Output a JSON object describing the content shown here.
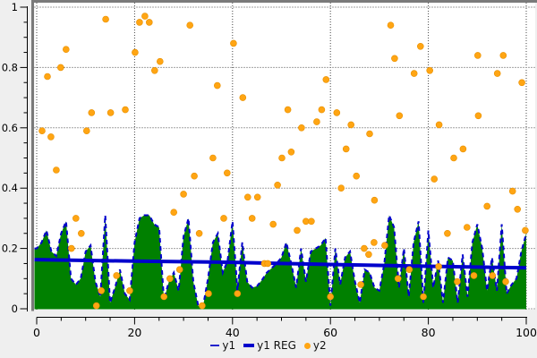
{
  "chart_data": {
    "type": "combo",
    "title": "",
    "grid": true,
    "legend_position": "bottom",
    "x_axis": {
      "min": 0,
      "max": 100,
      "major_tick_values": [
        0,
        20,
        40,
        60,
        80,
        100
      ],
      "tick_labels": [
        "0",
        "20",
        "40",
        "60",
        "80",
        "100"
      ],
      "minor_tick_step": 5
    },
    "y_axis": {
      "min": 0,
      "max": 1,
      "major_tick_values": [
        0,
        0.2,
        0.4,
        0.6,
        0.8,
        1
      ],
      "tick_labels": [
        "0",
        "0.2",
        "0.4",
        "0.6",
        "0.8",
        "1"
      ],
      "minor_tick_step": 0.05
    },
    "series": [
      {
        "name": "y1",
        "type": "area",
        "fill_color": "#008000",
        "line_color": "#0000cc",
        "line_style": "dashed",
        "x_start": 0,
        "x_step": 1,
        "values": [
          0.2,
          0.22,
          0.26,
          0.19,
          0.175,
          0.25,
          0.29,
          0.1,
          0.08,
          0.1,
          0.19,
          0.21,
          0.09,
          0.04,
          0.31,
          0.02,
          0.07,
          0.13,
          0.05,
          0.03,
          0.22,
          0.3,
          0.31,
          0.31,
          0.28,
          0.27,
          0.03,
          0.09,
          0.12,
          0.06,
          0.24,
          0.3,
          0.09,
          0.01,
          0.01,
          0.1,
          0.22,
          0.25,
          0.12,
          0.16,
          0.29,
          0.06,
          0.22,
          0.09,
          0.07,
          0.075,
          0.095,
          0.12,
          0.135,
          0.15,
          0.17,
          0.22,
          0.15,
          0.07,
          0.2,
          0.09,
          0.19,
          0.2,
          0.21,
          0.235,
          0.01,
          0.2,
          0.08,
          0.17,
          0.19,
          0.09,
          0.02,
          0.13,
          0.12,
          0.07,
          0.06,
          0.15,
          0.31,
          0.27,
          0.07,
          0.2,
          0.04,
          0.22,
          0.29,
          0.02,
          0.26,
          0.07,
          0.16,
          0.02,
          0.17,
          0.16,
          0.02,
          0.18,
          0.04,
          0.22,
          0.28,
          0.2,
          0.06,
          0.17,
          0.06,
          0.28,
          0.05,
          0.08,
          0.1,
          0.19,
          0.25
        ]
      },
      {
        "name": "y1 REG",
        "type": "line",
        "line_color": "#0000cc",
        "line_width": 4,
        "points": [
          [
            0,
            0.163
          ],
          [
            20,
            0.158
          ],
          [
            40,
            0.154
          ],
          [
            50,
            0.15
          ],
          [
            60,
            0.147
          ],
          [
            80,
            0.141
          ],
          [
            100,
            0.136
          ]
        ]
      },
      {
        "name": "y2",
        "type": "scatter",
        "color": "#ffa513",
        "points": [
          [
            1.1,
            0.59
          ],
          [
            2.2,
            0.77
          ],
          [
            2.9,
            0.57
          ],
          [
            4.0,
            0.46
          ],
          [
            4.9,
            0.8
          ],
          [
            6.0,
            0.86
          ],
          [
            7.1,
            0.2
          ],
          [
            8.0,
            0.3
          ],
          [
            9.1,
            0.25
          ],
          [
            10.2,
            0.59
          ],
          [
            11.2,
            0.65
          ],
          [
            12.2,
            0.01
          ],
          [
            13.2,
            0.06
          ],
          [
            14.1,
            0.96
          ],
          [
            15.1,
            0.65
          ],
          [
            16.3,
            0.11
          ],
          [
            18.1,
            0.66
          ],
          [
            19.0,
            0.06
          ],
          [
            20.1,
            0.85
          ],
          [
            21.0,
            0.95
          ],
          [
            22.1,
            0.97
          ],
          [
            23.0,
            0.95
          ],
          [
            24.1,
            0.79
          ],
          [
            25.2,
            0.82
          ],
          [
            26.0,
            0.04
          ],
          [
            27.2,
            0.1
          ],
          [
            28.0,
            0.32
          ],
          [
            29.2,
            0.13
          ],
          [
            30.0,
            0.38
          ],
          [
            31.3,
            0.94
          ],
          [
            32.2,
            0.44
          ],
          [
            33.2,
            0.25
          ],
          [
            33.8,
            0.01
          ],
          [
            35.1,
            0.05
          ],
          [
            36.0,
            0.5
          ],
          [
            36.9,
            0.74
          ],
          [
            38.2,
            0.3
          ],
          [
            38.9,
            0.45
          ],
          [
            40.2,
            0.88
          ],
          [
            41.0,
            0.05
          ],
          [
            42.1,
            0.7
          ],
          [
            43.1,
            0.37
          ],
          [
            44.0,
            0.3
          ],
          [
            45.1,
            0.37
          ],
          [
            46.5,
            0.15
          ],
          [
            47.2,
            0.15
          ],
          [
            48.3,
            0.28
          ],
          [
            49.2,
            0.41
          ],
          [
            50.1,
            0.5
          ],
          [
            51.3,
            0.66
          ],
          [
            52.0,
            0.52
          ],
          [
            53.2,
            0.26
          ],
          [
            54.1,
            0.6
          ],
          [
            55.0,
            0.29
          ],
          [
            56.1,
            0.29
          ],
          [
            57.2,
            0.62
          ],
          [
            58.2,
            0.66
          ],
          [
            59.1,
            0.76
          ],
          [
            60.0,
            0.04
          ],
          [
            61.3,
            0.65
          ],
          [
            62.2,
            0.4
          ],
          [
            63.2,
            0.53
          ],
          [
            64.2,
            0.61
          ],
          [
            65.3,
            0.44
          ],
          [
            66.2,
            0.08
          ],
          [
            66.9,
            0.2
          ],
          [
            67.8,
            0.18
          ],
          [
            68.0,
            0.58
          ],
          [
            68.9,
            0.22
          ],
          [
            69.0,
            0.36
          ],
          [
            71.1,
            0.21
          ],
          [
            72.3,
            0.94
          ],
          [
            73.1,
            0.83
          ],
          [
            73.8,
            0.1
          ],
          [
            74.1,
            0.64
          ],
          [
            76.1,
            0.13
          ],
          [
            77.1,
            0.78
          ],
          [
            78.4,
            0.87
          ],
          [
            79.0,
            0.04
          ],
          [
            80.3,
            0.79
          ],
          [
            81.2,
            0.43
          ],
          [
            82.1,
            0.14
          ],
          [
            82.2,
            0.61
          ],
          [
            83.9,
            0.25
          ],
          [
            85.2,
            0.5
          ],
          [
            85.9,
            0.09
          ],
          [
            87.1,
            0.53
          ],
          [
            87.9,
            0.27
          ],
          [
            89.3,
            0.11
          ],
          [
            90.1,
            0.84
          ],
          [
            90.2,
            0.64
          ],
          [
            92.0,
            0.34
          ],
          [
            93.1,
            0.11
          ],
          [
            94.1,
            0.78
          ],
          [
            95.3,
            0.84
          ],
          [
            95.8,
            0.09
          ],
          [
            97.2,
            0.39
          ],
          [
            98.2,
            0.33
          ],
          [
            99.1,
            0.75
          ],
          [
            99.8,
            0.26
          ]
        ]
      }
    ]
  },
  "colors": {
    "background": "#efefef",
    "plot_background": "#ffffff",
    "frame": "#7a7a7a",
    "grid": "#444444",
    "axis": "#000000",
    "area_fill": "#008000",
    "line_blue": "#0000cc",
    "scatter_orange": "#ffa513"
  }
}
